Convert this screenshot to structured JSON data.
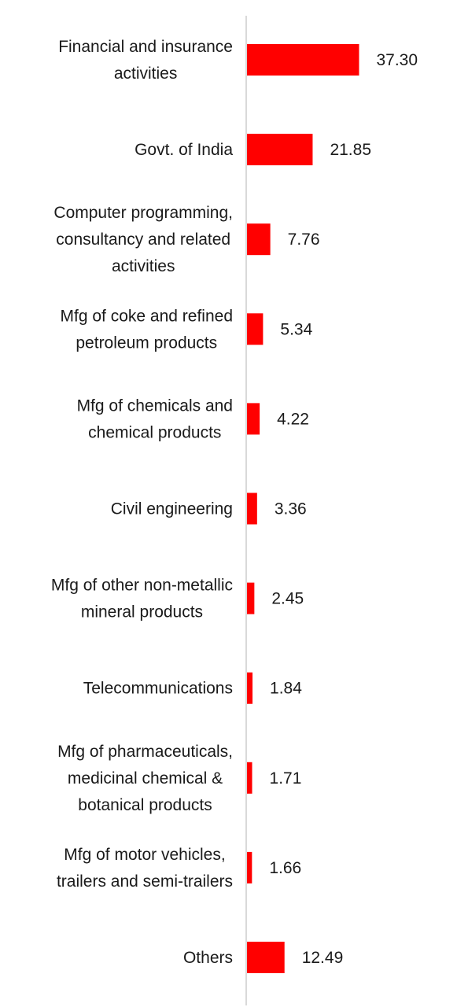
{
  "chart_data": {
    "type": "bar",
    "orientation": "horizontal",
    "title": "",
    "xlabel": "",
    "ylabel": "",
    "grid": false,
    "bar_color": "#ff0000",
    "categories": [
      [
        "Financial and insurance",
        "activities"
      ],
      [
        "Govt. of India"
      ],
      [
        "Computer programming,",
        "consultancy and related",
        "activities"
      ],
      [
        "Mfg of coke and refined",
        "petroleum products"
      ],
      [
        "Mfg of chemicals and",
        "chemical products"
      ],
      [
        "Civil engineering"
      ],
      [
        "Mfg of other non-metallic",
        "mineral products"
      ],
      [
        "Telecommunications"
      ],
      [
        "Mfg of pharmaceuticals,",
        "medicinal chemical &",
        "botanical products"
      ],
      [
        "Mfg of motor vehicles,",
        "trailers and semi-trailers"
      ],
      [
        "Others"
      ]
    ],
    "values": [
      37.3,
      21.85,
      7.76,
      5.34,
      4.22,
      3.36,
      2.45,
      1.84,
      1.71,
      1.66,
      12.49
    ],
    "value_labels": [
      "37.30",
      "21.85",
      "7.76",
      "5.34",
      "4.22",
      "3.36",
      "2.45",
      "1.84",
      "1.71",
      "1.66",
      "12.49"
    ],
    "xlim": [
      0,
      150
    ]
  }
}
